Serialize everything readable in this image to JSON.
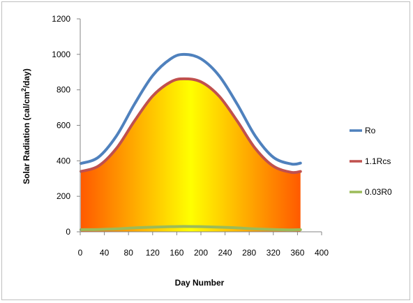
{
  "chart_data": {
    "type": "line",
    "title": "",
    "xlabel": "Day Number",
    "ylabel_main": "Solar Radiation  (cal/cm",
    "ylabel_sup": "2",
    "ylabel_tail": "/day)",
    "xlim": [
      0,
      400
    ],
    "ylim": [
      0,
      1200
    ],
    "xticks": [
      0,
      40,
      80,
      120,
      160,
      200,
      240,
      280,
      320,
      360,
      400
    ],
    "yticks": [
      0,
      200,
      400,
      600,
      800,
      1000,
      1200
    ],
    "grid": false,
    "legend_position": "right",
    "fill_under": "1.1Rcs",
    "fill_gradient": [
      "#ff5a00",
      "#ffff00",
      "#ff5a00"
    ],
    "x": [
      1,
      30,
      60,
      90,
      120,
      150,
      172,
      200,
      230,
      260,
      290,
      320,
      350,
      365
    ],
    "series": [
      {
        "name": "Ro",
        "color": "#4f81bd",
        "values": [
          385,
          420,
          540,
          720,
          880,
          975,
          1000,
          975,
          880,
          720,
          540,
          420,
          382,
          387
        ]
      },
      {
        "name": "1.1Rcs",
        "color": "#c0504d",
        "values": [
          340,
          370,
          470,
          625,
          765,
          845,
          862,
          845,
          765,
          625,
          470,
          370,
          335,
          340
        ]
      },
      {
        "name": "0.03R0",
        "color": "#9bbb59",
        "values": [
          12,
          13,
          16,
          22,
          26,
          29,
          30,
          29,
          26,
          22,
          16,
          13,
          11,
          12
        ]
      }
    ]
  }
}
